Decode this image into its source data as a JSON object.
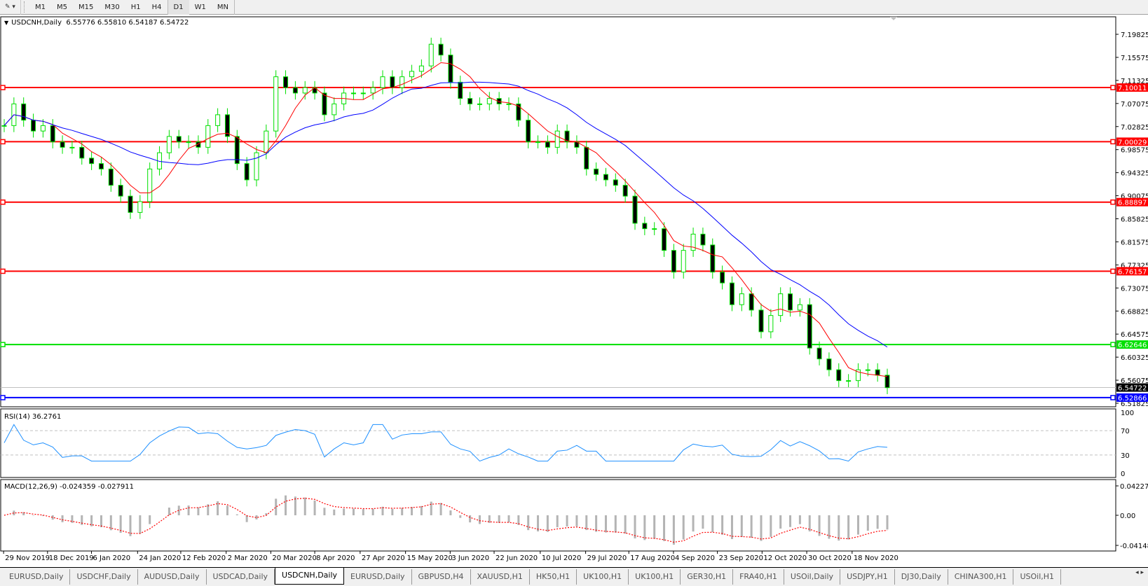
{
  "toolbar": {
    "timeframes": [
      "M1",
      "M5",
      "M15",
      "M30",
      "H1",
      "H4",
      "D1",
      "W1",
      "MN"
    ],
    "active_timeframe": "D1"
  },
  "chart": {
    "title": "USDCNH,Daily",
    "ohlc_text": "6.55776 6.55810 6.54187 6.54722",
    "price_ticks": [
      "7.19825",
      "7.15575",
      "7.11325",
      "7.07075",
      "7.02825",
      "6.98575",
      "6.94325",
      "6.90075",
      "6.85825",
      "6.81575",
      "6.77325",
      "6.73075",
      "6.68825",
      "6.64575",
      "6.60325",
      "6.56075",
      "6.51825"
    ],
    "price_ticks_values": [
      7.19825,
      7.15575,
      7.11325,
      7.07075,
      7.02825,
      6.98575,
      6.94325,
      6.90075,
      6.85825,
      6.81575,
      6.77325,
      6.73075,
      6.68825,
      6.64575,
      6.60325,
      6.56075,
      6.51825
    ],
    "current_price": "6.54722",
    "levels": [
      {
        "label": "7.10011",
        "value": 7.10011,
        "color": "#ff0000"
      },
      {
        "label": "7.00029",
        "value": 7.00029,
        "color": "#ff0000"
      },
      {
        "label": "6.88897",
        "value": 6.88897,
        "color": "#ff0000"
      },
      {
        "label": "6.76157",
        "value": 6.76157,
        "color": "#ff0000"
      },
      {
        "label": "6.62646",
        "value": 6.62646,
        "color": "#00e000"
      },
      {
        "label": "6.52866",
        "value": 6.52866,
        "color": "#0000ff"
      }
    ],
    "colors": {
      "bull": "#00e000",
      "bear": "#00e000",
      "ma_fast": "#ff0000",
      "ma_slow": "#0000ff",
      "rsi": "#1e90ff",
      "macd_hist": "#b4b4b4",
      "macd_signal": "#ff0000"
    },
    "closes": [
      7.03,
      7.07,
      7.04,
      7.02,
      7.03,
      7.0,
      6.99,
      6.99,
      6.97,
      6.96,
      6.95,
      6.92,
      6.9,
      6.87,
      6.89,
      6.95,
      6.98,
      7.01,
      7.0,
      7.0,
      6.99,
      7.03,
      7.05,
      7.01,
      6.96,
      6.93,
      6.98,
      7.02,
      7.12,
      7.1,
      7.09,
      7.1,
      7.09,
      7.05,
      7.07,
      7.09,
      7.09,
      7.09,
      7.1,
      7.12,
      7.1,
      7.12,
      7.13,
      7.14,
      7.18,
      7.16,
      7.11,
      7.08,
      7.07,
      7.07,
      7.08,
      7.07,
      7.07,
      7.04,
      7.0,
      7.0,
      6.99,
      7.02,
      7.0,
      6.99,
      6.95,
      6.94,
      6.93,
      6.92,
      6.9,
      6.85,
      6.84,
      6.84,
      6.8,
      6.76,
      6.8,
      6.83,
      6.81,
      6.76,
      6.74,
      6.7,
      6.72,
      6.69,
      6.65,
      6.68,
      6.72,
      6.69,
      6.7,
      6.62,
      6.6,
      6.58,
      6.56,
      6.56,
      6.58,
      6.58,
      6.57,
      6.547
    ],
    "date_labels": [
      "29 Nov 2019",
      "18 Dec 2019",
      "6 Jan 2020",
      "24 Jan 2020",
      "12 Feb 2020",
      "2 Mar 2020",
      "20 Mar 2020",
      "8 Apr 2020",
      "27 Apr 2020",
      "15 May 2020",
      "3 Jun 2020",
      "22 Jun 2020",
      "10 Jul 2020",
      "29 Jul 2020",
      "17 Aug 2020",
      "4 Sep 2020",
      "23 Sep 2020",
      "12 Oct 2020",
      "30 Oct 2020",
      "18 Nov 2020"
    ]
  },
  "rsi": {
    "label": "RSI(14) 36.2761",
    "ticks": [
      "100",
      "70",
      "30",
      "0"
    ]
  },
  "macd": {
    "label": "MACD(12,26,9) -0.024359 -0.027911",
    "ticks": [
      "0.042275",
      "0.00",
      "-0.04148"
    ]
  },
  "tabs": [
    "EURUSD,Daily",
    "USDCHF,Daily",
    "AUDUSD,Daily",
    "USDCAD,Daily",
    "USDCNH,Daily",
    "EURUSD,Daily",
    "GBPUSD,H4",
    "XAUUSD,H1",
    "HK50,H1",
    "UK100,H1",
    "UK100,H1",
    "GER30,H1",
    "FRA40,H1",
    "USOil,Daily",
    "USDJPY,H1",
    "DJ30,Daily",
    "CHINA300,H1",
    "USOil,H1"
  ],
  "active_tab": "USDCNH,Daily"
}
